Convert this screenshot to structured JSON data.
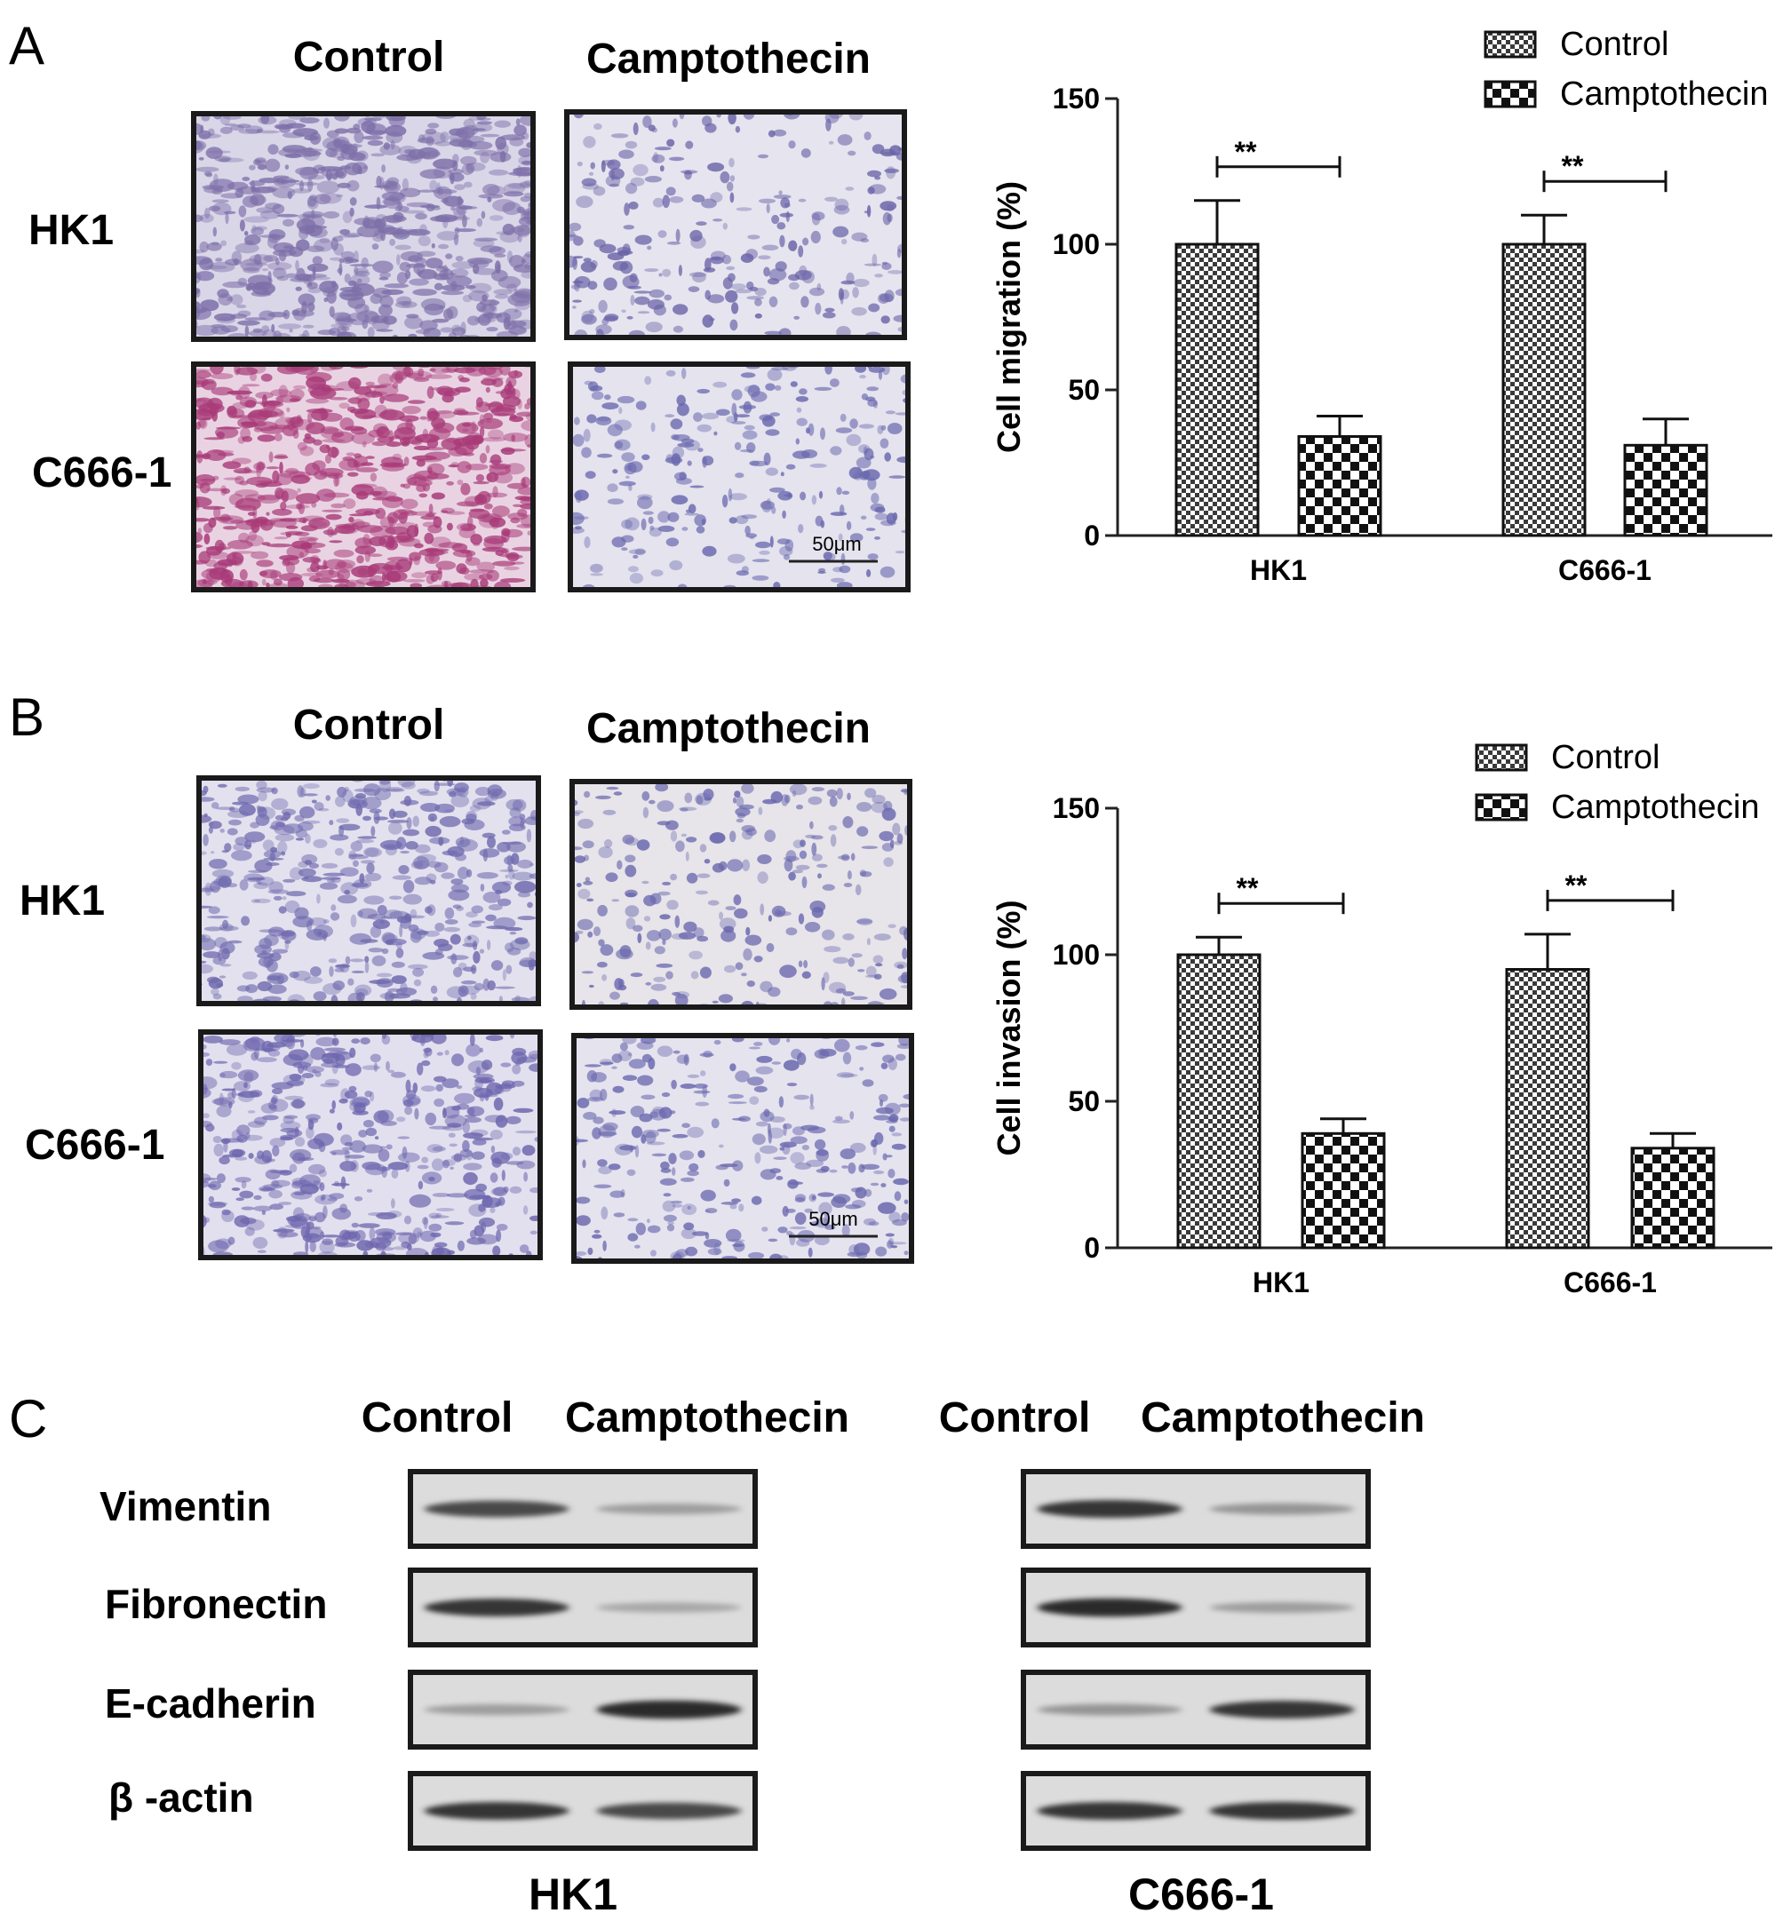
{
  "panels": {
    "A": {
      "letter": "A",
      "col_headers": [
        "Control",
        "Camptothecin"
      ],
      "row_labels": [
        "HK1",
        "C666-1"
      ],
      "scale_bar": "50μm",
      "micrographs": [
        {
          "row": "HK1",
          "col": "Control",
          "tone": "#7d6fa8",
          "bg": "#d9d6e8",
          "density": 0.75
        },
        {
          "row": "HK1",
          "col": "Camptothecin",
          "tone": "#6a64a8",
          "bg": "#e6e4ee",
          "density": 0.3
        },
        {
          "row": "C666-1",
          "col": "Control",
          "tone": "#a83a78",
          "bg": "#e9d3e2",
          "density": 0.8
        },
        {
          "row": "C666-1",
          "col": "Camptothecin",
          "tone": "#6a68ae",
          "bg": "#e4e3ee",
          "density": 0.3
        }
      ]
    },
    "B": {
      "letter": "B",
      "col_headers": [
        "Control",
        "Camptothecin"
      ],
      "row_labels": [
        "HK1",
        "C666-1"
      ],
      "scale_bar": "50μm",
      "micrographs": [
        {
          "row": "HK1",
          "col": "Control",
          "tone": "#6f6aae",
          "bg": "#e3e1ee",
          "density": 0.55
        },
        {
          "row": "HK1",
          "col": "Camptothecin",
          "tone": "#6a68ae",
          "bg": "#e7e4ea",
          "density": 0.3
        },
        {
          "row": "C666-1",
          "col": "Control",
          "tone": "#6d66ae",
          "bg": "#e2e0ee",
          "density": 0.55
        },
        {
          "row": "C666-1",
          "col": "Camptothecin",
          "tone": "#6a68ae",
          "bg": "#e5e3ee",
          "density": 0.35
        }
      ]
    },
    "C": {
      "letter": "C",
      "groups": [
        {
          "title": "HK1",
          "col_headers": [
            "Control",
            "Camptothecin"
          ],
          "intensities": [
            [
              0.75,
              0.3
            ],
            [
              0.85,
              0.25
            ],
            [
              0.3,
              0.9
            ],
            [
              0.85,
              0.75
            ]
          ]
        },
        {
          "title": "C666-1",
          "col_headers": [
            "Control",
            "Camptothecin"
          ],
          "intensities": [
            [
              0.85,
              0.35
            ],
            [
              0.9,
              0.3
            ],
            [
              0.35,
              0.85
            ],
            [
              0.85,
              0.85
            ]
          ]
        }
      ],
      "row_labels": [
        "Vimentin",
        "Fibronectin",
        "E-cadherin",
        "β -actin"
      ]
    }
  },
  "chart_data": [
    {
      "type": "bar",
      "panel": "A",
      "categories": [
        "HK1",
        "C666-1"
      ],
      "series": [
        {
          "name": "Control",
          "values": [
            100,
            100
          ],
          "error": [
            15,
            10
          ],
          "pattern": "fine-checker"
        },
        {
          "name": "Camptothecin",
          "values": [
            34,
            31
          ],
          "error": [
            7,
            9
          ],
          "pattern": "coarse-checker"
        }
      ],
      "ylabel": "Cell migration (%)",
      "xlabel": "",
      "ylim": [
        0,
        150
      ],
      "yticks": [
        0,
        50,
        100,
        150
      ],
      "significance": [
        {
          "category": "HK1",
          "label": "**"
        },
        {
          "category": "C666-1",
          "label": "**"
        }
      ],
      "legend": "top-right",
      "grid": false
    },
    {
      "type": "bar",
      "panel": "B",
      "categories": [
        "HK1",
        "C666-1"
      ],
      "series": [
        {
          "name": "Control",
          "values": [
            100,
            95
          ],
          "error": [
            6,
            12
          ],
          "pattern": "fine-checker"
        },
        {
          "name": "Camptothecin",
          "values": [
            39,
            34
          ],
          "error": [
            5,
            5
          ],
          "pattern": "coarse-checker"
        }
      ],
      "ylabel": "Cell invasion (%)",
      "xlabel": "",
      "ylim": [
        0,
        150
      ],
      "yticks": [
        0,
        50,
        100,
        150
      ],
      "significance": [
        {
          "category": "HK1",
          "label": "**"
        },
        {
          "category": "C666-1",
          "label": "**"
        }
      ],
      "legend": "top-right",
      "grid": false
    }
  ]
}
